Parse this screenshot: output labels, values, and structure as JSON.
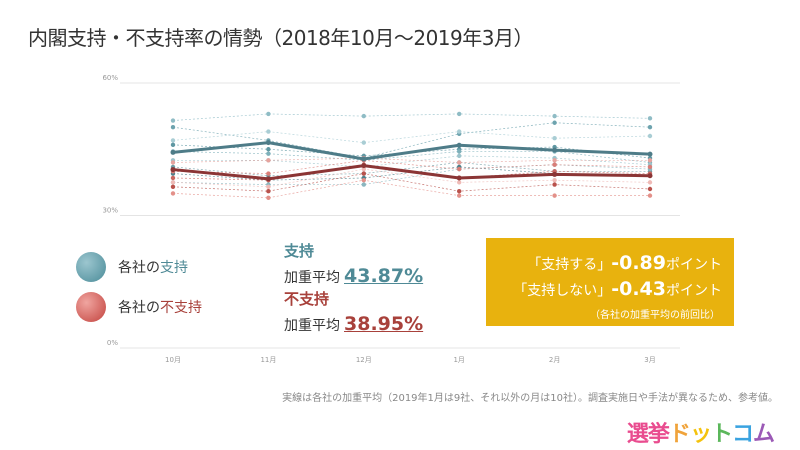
{
  "title": "内閣支持・不支持率の情勢（2018年10月〜2019年3月）",
  "chart_data": {
    "type": "line",
    "categories": [
      "10月",
      "11月",
      "12月",
      "1月",
      "2月",
      "3月"
    ],
    "y_ticks": [
      "60%",
      "30%",
      "0%"
    ],
    "ylim": [
      0,
      60
    ],
    "grid": true,
    "series": [
      {
        "name": "各社の支持",
        "role": "support-average",
        "color": "#4e7c88",
        "values": [
          44.3,
          46.5,
          42.8,
          45.9,
          44.8,
          43.9
        ]
      },
      {
        "name": "各社の不支持",
        "role": "nonsupport-average",
        "color": "#8b3535",
        "values": [
          40.4,
          38.3,
          41.3,
          38.5,
          39.3,
          39.0
        ]
      }
    ],
    "support_companies": [
      [
        51.5,
        53.0,
        52.5,
        53.0,
        52.5,
        52.0
      ],
      [
        50.0,
        47.0,
        43.0,
        48.5,
        51.0,
        50.0
      ],
      [
        47.0,
        49.0,
        46.5,
        49.0,
        47.5,
        48.0
      ],
      [
        46.0,
        45.0,
        43.5,
        45.0,
        45.5,
        43.0
      ],
      [
        44.5,
        44.0,
        42.5,
        44.5,
        44.5,
        42.0
      ],
      [
        42.5,
        42.5,
        41.0,
        43.5,
        43.0,
        41.5
      ],
      [
        41.0,
        39.0,
        39.5,
        42.0,
        40.0,
        40.0
      ],
      [
        39.5,
        38.0,
        38.5,
        41.0,
        39.5,
        39.0
      ],
      [
        37.5,
        37.0,
        37.0,
        40.5,
        41.5,
        40.5
      ]
    ],
    "nonsupport_companies": [
      [
        42.0,
        42.5,
        43.0,
        42.0,
        42.5,
        42.5
      ],
      [
        40.0,
        39.5,
        42.5,
        40.5,
        41.5,
        41.0
      ],
      [
        38.5,
        38.0,
        41.5,
        38.5,
        40.0,
        39.5
      ],
      [
        37.5,
        36.5,
        40.5,
        37.5,
        38.0,
        37.5
      ],
      [
        36.5,
        35.5,
        39.5,
        35.5,
        37.0,
        36.0
      ],
      [
        35.0,
        34.0,
        38.0,
        34.5,
        34.5,
        34.5
      ]
    ]
  },
  "legend": {
    "support_prefix": "各社の",
    "support_word": "支持",
    "nonsupport_prefix": "各社の",
    "nonsupport_word": "不支持"
  },
  "averages": {
    "label": "加重平均",
    "support_heading": "支持",
    "support_value": "43.87%",
    "nonsupport_heading": "不支持",
    "nonsupport_value": "38.95%"
  },
  "change_box": {
    "line1_label": "「支持する」",
    "line1_value": "-0.89",
    "line1_unit": "ポイント",
    "line2_label": "「支持しない」",
    "line2_value": "-0.43",
    "line2_unit": "ポイント",
    "note": "（各社の加重平均の前回比）"
  },
  "footnote": "実線は各社の加重平均（2019年1月は9社、それ以外の月は10社）。調査実施日や手法が異なるため、参考値。",
  "logo": {
    "chars": [
      "選",
      "挙",
      "ド",
      "ッ",
      "ト",
      "コ",
      "ム"
    ],
    "colors": [
      "#e94c8f",
      "#e94c8f",
      "#f0a33a",
      "#f4c20d",
      "#5bb75b",
      "#3aa3e0",
      "#9b59b6"
    ]
  }
}
